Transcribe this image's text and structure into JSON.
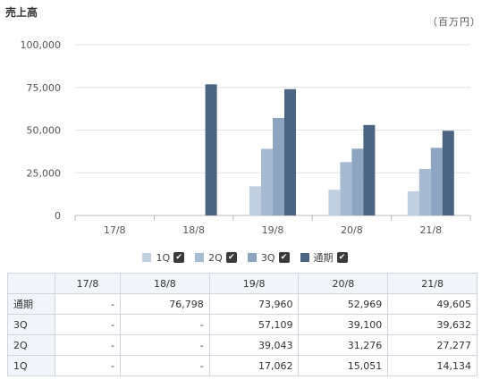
{
  "title": "売上高",
  "unit": "（百万円）",
  "colors": {
    "1Q": "#c0d0e0",
    "2Q": "#a6bbd2",
    "3Q": "#8da5c0",
    "通期": "#4a6482"
  },
  "legend": [
    {
      "name": "1Q",
      "checked": true
    },
    {
      "name": "2Q",
      "checked": true
    },
    {
      "name": "3Q",
      "checked": true
    },
    {
      "name": "通期",
      "checked": true
    }
  ],
  "chart_data": {
    "type": "bar",
    "title": "売上高",
    "ylabel": "",
    "xlabel": "",
    "ylim": [
      0,
      100000
    ],
    "yticks": [
      "0",
      "25,000",
      "50,000",
      "75,000",
      "100,000"
    ],
    "categories": [
      "17/8",
      "18/8",
      "19/8",
      "20/8",
      "21/8"
    ],
    "series": [
      {
        "name": "1Q",
        "values": [
          null,
          null,
          17062,
          15051,
          14134
        ]
      },
      {
        "name": "2Q",
        "values": [
          null,
          null,
          39043,
          31276,
          27277
        ]
      },
      {
        "name": "3Q",
        "values": [
          null,
          null,
          57109,
          39100,
          39632
        ]
      },
      {
        "name": "通期",
        "values": [
          null,
          76798,
          73960,
          52969,
          49605
        ]
      }
    ],
    "grid": true,
    "legend": "bottom"
  },
  "table": {
    "columns": [
      "",
      "17/8",
      "18/8",
      "19/8",
      "20/8",
      "21/8"
    ],
    "rows": [
      {
        "label": "通期",
        "cells": [
          "-",
          "76,798",
          "73,960",
          "52,969",
          "49,605"
        ]
      },
      {
        "label": "3Q",
        "cells": [
          "-",
          "-",
          "57,109",
          "39,100",
          "39,632"
        ]
      },
      {
        "label": "2Q",
        "cells": [
          "-",
          "-",
          "39,043",
          "31,276",
          "27,277"
        ]
      },
      {
        "label": "1Q",
        "cells": [
          "-",
          "-",
          "17,062",
          "15,051",
          "14,134"
        ]
      }
    ]
  }
}
